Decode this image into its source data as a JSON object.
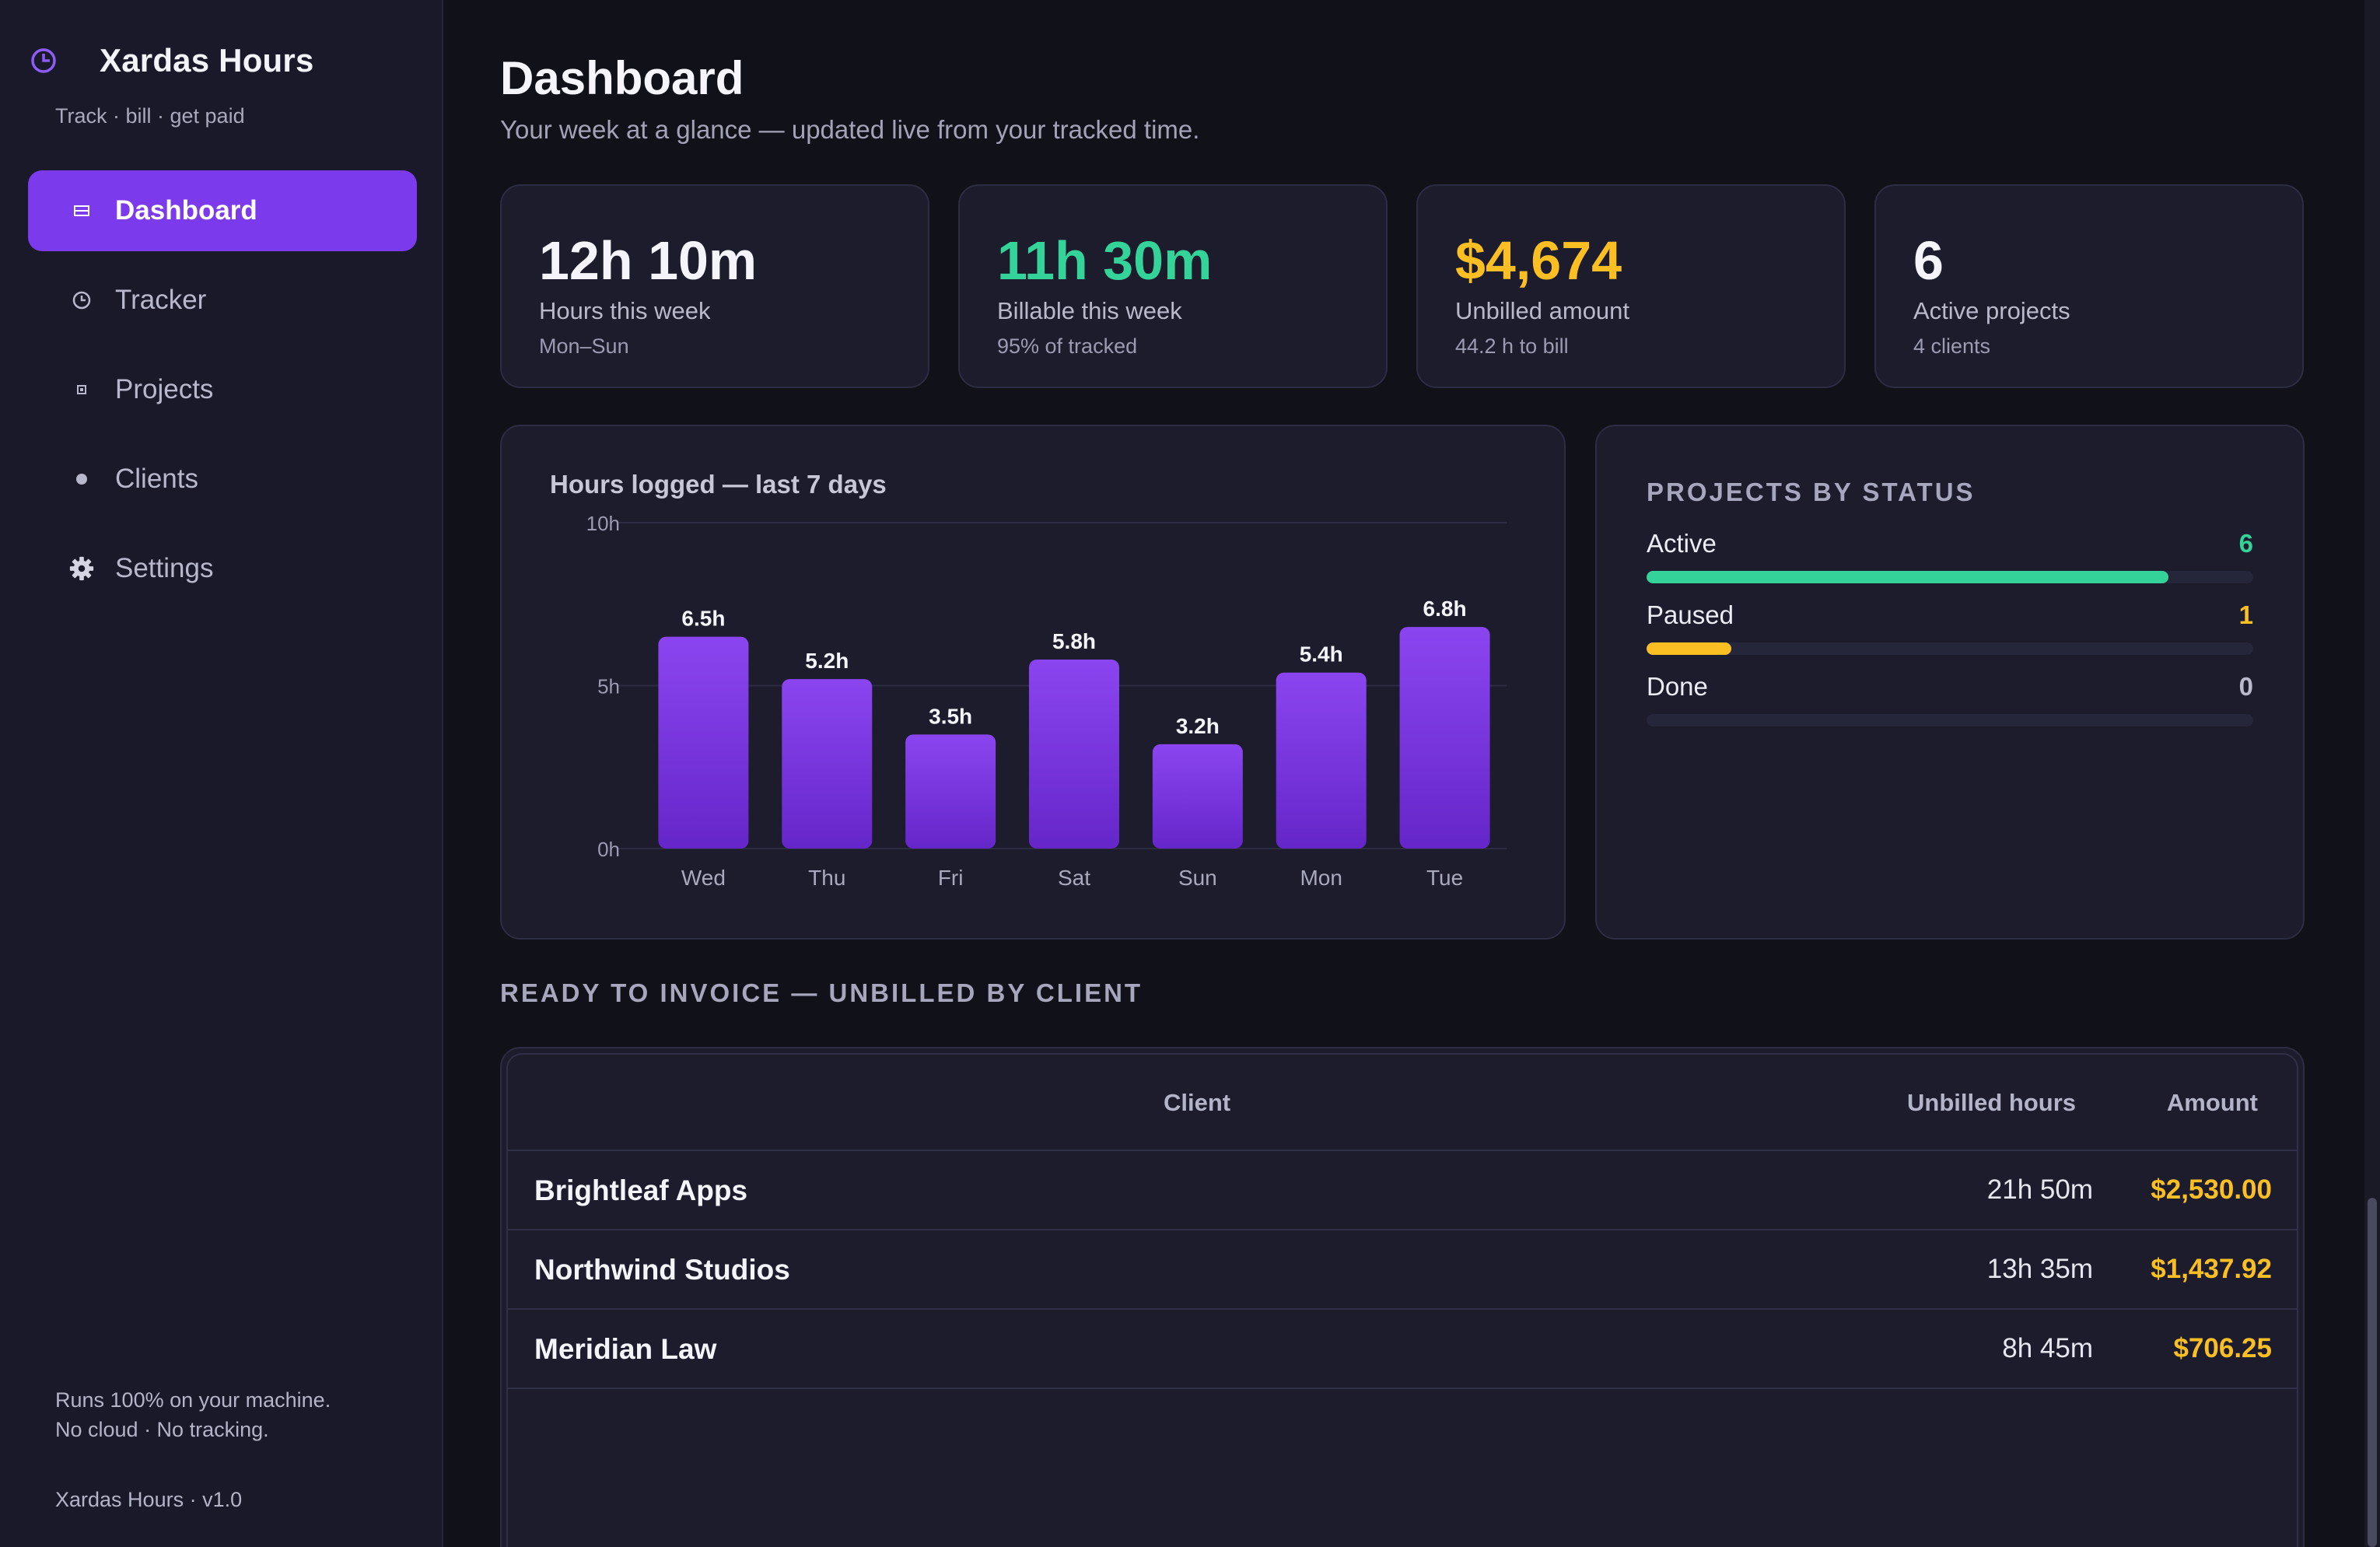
{
  "app": {
    "name": "Xardas Hours",
    "tagline": "Track · bill · get paid",
    "accent": "#7c3aed",
    "footer_line1": "Runs 100% on your machine.",
    "footer_line2": "No cloud · No tracking.",
    "version": "Xardas Hours · v1.0"
  },
  "nav": [
    {
      "label": "Dashboard",
      "icon": "dashboard-icon",
      "active": true
    },
    {
      "label": "Tracker",
      "icon": "clock-icon",
      "active": false
    },
    {
      "label": "Projects",
      "icon": "folder-icon",
      "active": false
    },
    {
      "label": "Clients",
      "icon": "person-dot-icon",
      "active": false
    },
    {
      "label": "Settings",
      "icon": "gear-icon",
      "active": false
    }
  ],
  "header": {
    "title": "Dashboard",
    "subtitle": "Your week at a glance — updated live from your tracked time."
  },
  "stats": [
    {
      "value": "12h 10m",
      "label": "Hours this week",
      "note": "Mon–Sun",
      "color": "#f4f4fa"
    },
    {
      "value": "11h 30m",
      "label": "Billable this week",
      "note": "95% of tracked",
      "color": "#34d399"
    },
    {
      "value": "$4,674",
      "label": "Unbilled amount",
      "note": "44.2 h to bill",
      "color": "#fbbf24"
    },
    {
      "value": "6",
      "label": "Active projects",
      "note": "4 clients",
      "color": "#f4f4fa"
    }
  ],
  "chart_data": {
    "type": "bar",
    "title": "Hours logged — last 7 days",
    "categories": [
      "Wed",
      "Thu",
      "Fri",
      "Sat",
      "Sun",
      "Mon",
      "Tue"
    ],
    "values": [
      6.5,
      5.2,
      3.5,
      5.8,
      3.2,
      5.4,
      6.8
    ],
    "value_labels": [
      "6.5h",
      "5.2h",
      "3.5h",
      "5.8h",
      "3.2h",
      "5.4h",
      "6.8h"
    ],
    "yticks": [
      "0h",
      "5h",
      "10h"
    ],
    "ylim": [
      0,
      10
    ],
    "xlabel": "",
    "ylabel": "",
    "grid": true,
    "bar_color_top": "#8b45f0",
    "bar_color_bottom": "#6526c9"
  },
  "projects_by_status": {
    "title": "PROJECTS BY STATUS",
    "items": [
      {
        "name": "Active",
        "count": "6",
        "fraction": 0.86,
        "color": "#34d399"
      },
      {
        "name": "Paused",
        "count": "1",
        "fraction": 0.14,
        "color": "#fbbf24"
      },
      {
        "name": "Done",
        "count": "0",
        "fraction": 0.0,
        "color": "#9b9bb2"
      }
    ]
  },
  "invoice": {
    "section_title": "READY TO INVOICE — UNBILLED BY CLIENT",
    "columns": {
      "client": "Client",
      "hours": "Unbilled hours",
      "amount": "Amount"
    },
    "rows": [
      {
        "client": "Brightleaf Apps",
        "hours": "21h 50m",
        "amount": "$2,530.00"
      },
      {
        "client": "Northwind Studios",
        "hours": "13h 35m",
        "amount": "$1,437.92"
      },
      {
        "client": "Meridian Law",
        "hours": "8h 45m",
        "amount": "$706.25"
      }
    ]
  }
}
